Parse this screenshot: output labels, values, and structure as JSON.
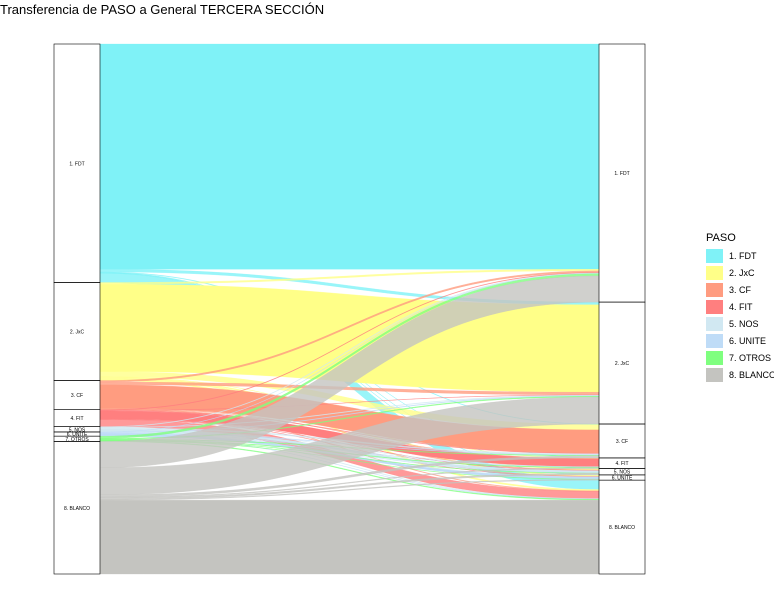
{
  "title": "Transferencia de PASO a General TERCERA SECCIÓN",
  "legend": {
    "title": "PASO",
    "items": [
      {
        "label": "1. FDT",
        "color": "#7FF2F7"
      },
      {
        "label": "2. JxC",
        "color": "#FFFF88"
      },
      {
        "label": "3. CF",
        "color": "#FF9C80"
      },
      {
        "label": "4. FIT",
        "color": "#FF7F7F"
      },
      {
        "label": "5. NOS",
        "color": "#D1E8F2"
      },
      {
        "label": "6. UNITE",
        "color": "#BFDCF7"
      },
      {
        "label": "7. OTROS",
        "color": "#7FFF7F"
      },
      {
        "label": "8. BLANCO",
        "color": "#C4C4C0"
      }
    ]
  },
  "chart_data": {
    "type": "alluvial",
    "axes": [
      "PASO",
      "General"
    ],
    "categories": [
      "1. FDT",
      "2. JxC",
      "3. CF",
      "4. FIT",
      "5. NOS",
      "6. UNITE",
      "7. OTROS",
      "8. BLANCO"
    ],
    "left_shares": [
      45.0,
      18.5,
      5.5,
      3.2,
      1.0,
      0.8,
      1.0,
      25.0
    ],
    "right_shares": [
      48.7,
      23.0,
      6.4,
      2.0,
      1.2,
      1.0,
      0.0,
      17.7
    ],
    "flows": [
      [
        42.5,
        0.5,
        0.1,
        0.05,
        0.05,
        0.05,
        0,
        1.75
      ],
      [
        0.3,
        16.5,
        1.0,
        0.05,
        0.2,
        0.2,
        0,
        0.25
      ],
      [
        0.3,
        0.5,
        4.4,
        0.05,
        0.1,
        0.05,
        0,
        0.1
      ],
      [
        0.1,
        0.05,
        0.1,
        1.5,
        0.05,
        0.05,
        0,
        1.35
      ],
      [
        0.1,
        0.1,
        0.2,
        0.05,
        0.4,
        0.05,
        0,
        0.1
      ],
      [
        0.05,
        0.1,
        0.1,
        0.05,
        0.05,
        0.4,
        0,
        0.05
      ],
      [
        0.4,
        0.15,
        0.1,
        0.1,
        0.05,
        0.05,
        0,
        0.15
      ],
      [
        4.95,
        5.1,
        0.4,
        0.15,
        0.3,
        0.15,
        0,
        13.95
      ]
    ]
  }
}
